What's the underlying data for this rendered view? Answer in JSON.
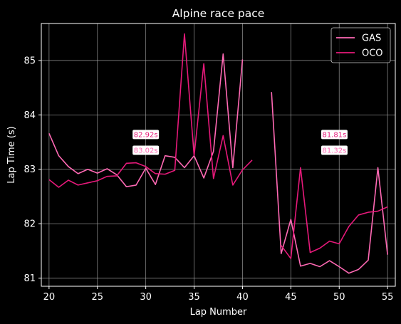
{
  "chart_data": {
    "type": "line",
    "title": "Alpine race pace",
    "xlabel": "Lap Number",
    "ylabel": "Lap Time (s)",
    "xlim": [
      19.2,
      55.8
    ],
    "ylim": [
      80.85,
      85.68
    ],
    "xticks": [
      20,
      25,
      30,
      35,
      40,
      45,
      50,
      55
    ],
    "yticks": [
      81,
      82,
      83,
      84,
      85
    ],
    "grid": true,
    "legend_position": "top-right",
    "background": "#000000",
    "series": [
      {
        "name": "GAS",
        "color": "#ff69b4",
        "points": [
          [
            20,
            83.66
          ],
          [
            21,
            83.25
          ],
          [
            22,
            83.05
          ],
          [
            23,
            82.92
          ],
          [
            24,
            83.0
          ],
          [
            25,
            82.93
          ],
          [
            26,
            83.01
          ],
          [
            27,
            82.9
          ],
          [
            28,
            82.68
          ],
          [
            29,
            82.71
          ],
          [
            30,
            83.02
          ],
          [
            31,
            82.72
          ],
          [
            32,
            83.25
          ],
          [
            33,
            83.22
          ],
          [
            34,
            83.03
          ],
          [
            35,
            83.25
          ],
          [
            36,
            82.84
          ],
          [
            37,
            83.33
          ],
          [
            38,
            85.12
          ],
          [
            39,
            83.03
          ],
          [
            40,
            85.02
          ],
          [
            41,
            null
          ],
          [
            42,
            null
          ],
          [
            43,
            84.42
          ],
          [
            44,
            81.45
          ],
          [
            45,
            82.08
          ],
          [
            46,
            81.22
          ],
          [
            47,
            81.27
          ],
          [
            48,
            81.21
          ],
          [
            49,
            81.32
          ],
          [
            50,
            81.21
          ],
          [
            51,
            81.09
          ],
          [
            52,
            81.16
          ],
          [
            53,
            81.33
          ],
          [
            54,
            83.03
          ],
          [
            55,
            81.43
          ]
        ]
      },
      {
        "name": "OCO",
        "color": "#e6197a",
        "points": [
          [
            20,
            82.81
          ],
          [
            21,
            82.67
          ],
          [
            22,
            82.8
          ],
          [
            23,
            82.71
          ],
          [
            24,
            82.75
          ],
          [
            25,
            82.79
          ],
          [
            26,
            82.87
          ],
          [
            27,
            82.88
          ],
          [
            28,
            83.11
          ],
          [
            29,
            83.12
          ],
          [
            30,
            83.05
          ],
          [
            31,
            82.92
          ],
          [
            32,
            82.91
          ],
          [
            33,
            82.98
          ],
          [
            34,
            85.49
          ],
          [
            35,
            83.25
          ],
          [
            36,
            84.94
          ],
          [
            37,
            82.83
          ],
          [
            38,
            83.62
          ],
          [
            39,
            82.71
          ],
          [
            40,
            82.99
          ],
          [
            41,
            83.17
          ],
          [
            42,
            null
          ],
          [
            43,
            null
          ],
          [
            44,
            81.6
          ],
          [
            45,
            81.36
          ],
          [
            46,
            83.03
          ],
          [
            47,
            81.47
          ],
          [
            48,
            81.55
          ],
          [
            49,
            81.68
          ],
          [
            50,
            81.63
          ],
          [
            51,
            81.95
          ],
          [
            52,
            82.16
          ],
          [
            53,
            82.21
          ],
          [
            54,
            82.23
          ],
          [
            55,
            82.31
          ]
        ]
      }
    ],
    "annotations": [
      {
        "text": "82.92s",
        "x": 30,
        "y": 83.64,
        "color": "#e6197a"
      },
      {
        "text": "83.02s",
        "x": 30,
        "y": 83.35,
        "color": "#ff69b4"
      },
      {
        "text": "81.81s",
        "x": 49.5,
        "y": 83.64,
        "color": "#e6197a"
      },
      {
        "text": "81.32s",
        "x": 49.5,
        "y": 83.35,
        "color": "#ff69b4"
      }
    ]
  }
}
